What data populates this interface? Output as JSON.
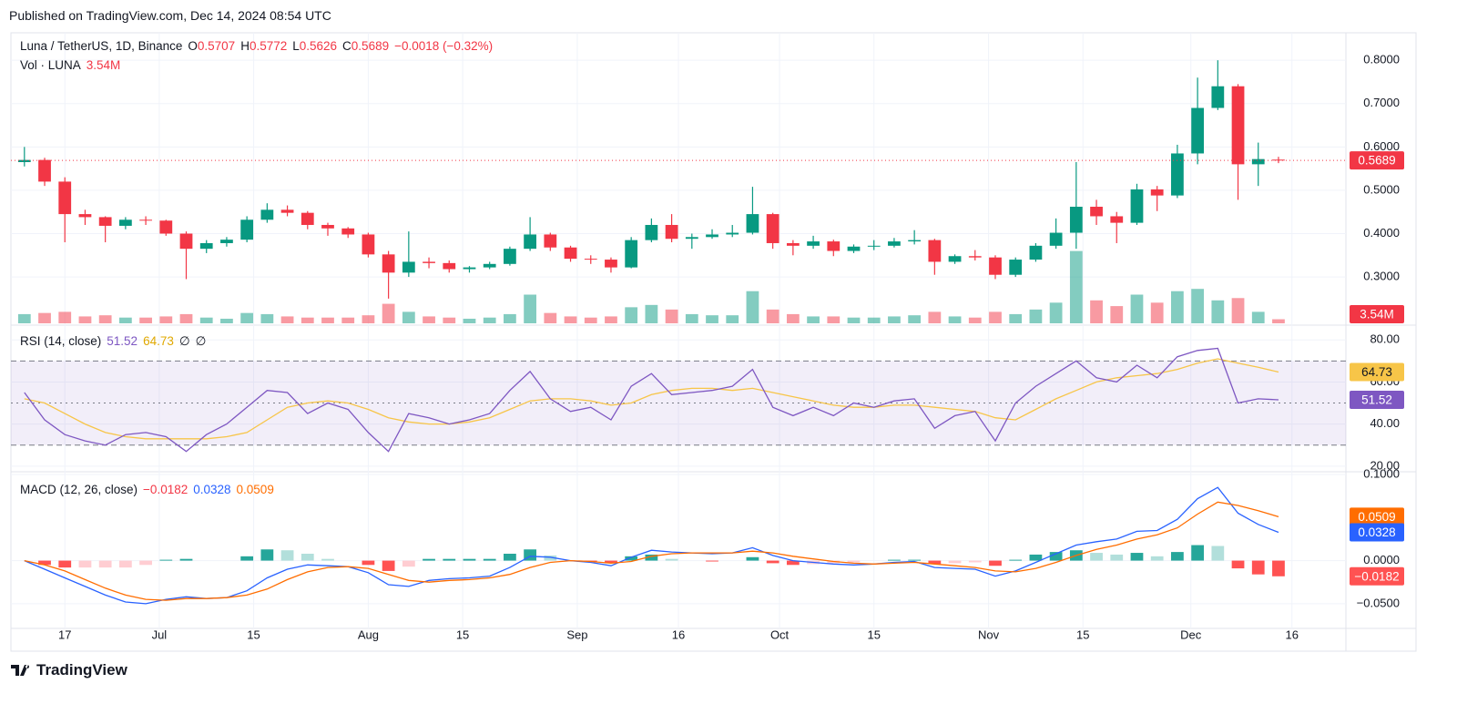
{
  "header": {
    "published": "Published on TradingView.com, Dec 14, 2024 08:54 UTC",
    "brand": "TradingView"
  },
  "chart_data": {
    "type": "candlestick",
    "title": "Luna / TetherUS, 1D, Binance",
    "ohlc_letters": [
      "O",
      "H",
      "L",
      "C"
    ],
    "change_label": "−0.0018 (−0.32%)",
    "up_color": "#089981",
    "down_color": "#f23645",
    "x": [
      "2024-06-11",
      "2024-06-14",
      "2024-06-17",
      "2024-06-20",
      "2024-06-23",
      "2024-06-26",
      "2024-06-29",
      "2024-07-02",
      "2024-07-05",
      "2024-07-08",
      "2024-07-11",
      "2024-07-14",
      "2024-07-17",
      "2024-07-20",
      "2024-07-23",
      "2024-07-26",
      "2024-07-29",
      "2024-08-01",
      "2024-08-04",
      "2024-08-07",
      "2024-08-10",
      "2024-08-13",
      "2024-08-16",
      "2024-08-19",
      "2024-08-22",
      "2024-08-25",
      "2024-08-28",
      "2024-08-31",
      "2024-09-03",
      "2024-09-06",
      "2024-09-09",
      "2024-09-12",
      "2024-09-15",
      "2024-09-18",
      "2024-09-21",
      "2024-09-24",
      "2024-09-27",
      "2024-09-30",
      "2024-10-03",
      "2024-10-06",
      "2024-10-09",
      "2024-10-12",
      "2024-10-15",
      "2024-10-18",
      "2024-10-21",
      "2024-10-24",
      "2024-10-27",
      "2024-10-30",
      "2024-11-02",
      "2024-11-05",
      "2024-11-08",
      "2024-11-11",
      "2024-11-14",
      "2024-11-17",
      "2024-11-20",
      "2024-11-23",
      "2024-11-26",
      "2024-11-29",
      "2024-12-02",
      "2024-12-05",
      "2024-12-08",
      "2024-12-11",
      "2024-12-14"
    ],
    "open": [
      0.565,
      0.57,
      0.52,
      0.445,
      0.438,
      0.418,
      0.432,
      0.43,
      0.4,
      0.365,
      0.378,
      0.386,
      0.432,
      0.455,
      0.448,
      0.42,
      0.412,
      0.398,
      0.352,
      0.31,
      0.335,
      0.332,
      0.318,
      0.322,
      0.33,
      0.365,
      0.398,
      0.368,
      0.342,
      0.34,
      0.322,
      0.385,
      0.42,
      0.388,
      0.392,
      0.398,
      0.402,
      0.445,
      0.378,
      0.372,
      0.382,
      0.36,
      0.37,
      0.372,
      0.382,
      0.385,
      0.335,
      0.348,
      0.345,
      0.305,
      0.34,
      0.372,
      0.402,
      0.462,
      0.44,
      0.425,
      0.502,
      0.488,
      0.585,
      0.69,
      0.74,
      0.56,
      0.5707
    ],
    "high": [
      0.6,
      0.575,
      0.53,
      0.455,
      0.44,
      0.438,
      0.44,
      0.432,
      0.405,
      0.385,
      0.392,
      0.44,
      0.47,
      0.465,
      0.452,
      0.425,
      0.415,
      0.402,
      0.36,
      0.405,
      0.345,
      0.338,
      0.325,
      0.335,
      0.37,
      0.438,
      0.402,
      0.372,
      0.35,
      0.345,
      0.392,
      0.435,
      0.445,
      0.4,
      0.41,
      0.42,
      0.508,
      0.448,
      0.385,
      0.395,
      0.386,
      0.375,
      0.385,
      0.39,
      0.408,
      0.388,
      0.352,
      0.362,
      0.35,
      0.345,
      0.378,
      0.435,
      0.565,
      0.478,
      0.45,
      0.515,
      0.51,
      0.605,
      0.76,
      0.8,
      0.745,
      0.61,
      0.5772
    ],
    "low": [
      0.555,
      0.51,
      0.38,
      0.42,
      0.38,
      0.41,
      0.42,
      0.395,
      0.295,
      0.355,
      0.37,
      0.38,
      0.425,
      0.44,
      0.41,
      0.395,
      0.39,
      0.345,
      0.25,
      0.3,
      0.32,
      0.31,
      0.31,
      0.318,
      0.326,
      0.36,
      0.36,
      0.335,
      0.33,
      0.31,
      0.32,
      0.38,
      0.38,
      0.365,
      0.388,
      0.392,
      0.398,
      0.365,
      0.35,
      0.365,
      0.348,
      0.355,
      0.362,
      0.368,
      0.375,
      0.305,
      0.33,
      0.338,
      0.295,
      0.3,
      0.335,
      0.365,
      0.365,
      0.42,
      0.378,
      0.42,
      0.452,
      0.482,
      0.56,
      0.685,
      0.478,
      0.51,
      0.5626
    ],
    "close": [
      0.57,
      0.52,
      0.445,
      0.438,
      0.418,
      0.432,
      0.43,
      0.4,
      0.365,
      0.378,
      0.386,
      0.432,
      0.455,
      0.448,
      0.42,
      0.412,
      0.398,
      0.352,
      0.31,
      0.335,
      0.332,
      0.318,
      0.322,
      0.33,
      0.365,
      0.398,
      0.368,
      0.342,
      0.34,
      0.322,
      0.385,
      0.42,
      0.388,
      0.392,
      0.398,
      0.402,
      0.445,
      0.378,
      0.372,
      0.382,
      0.36,
      0.37,
      0.372,
      0.382,
      0.385,
      0.335,
      0.348,
      0.345,
      0.305,
      0.34,
      0.372,
      0.402,
      0.462,
      0.44,
      0.425,
      0.502,
      0.488,
      0.585,
      0.69,
      0.74,
      0.56,
      0.572,
      0.5689
    ],
    "xlim": [
      "2024-06-09",
      "2024-12-24"
    ],
    "xticks": [
      {
        "value": "2024-06-17",
        "label": "17"
      },
      {
        "value": "2024-07-01",
        "label": "Jul"
      },
      {
        "value": "2024-07-15",
        "label": "15"
      },
      {
        "value": "2024-08-01",
        "label": "Aug"
      },
      {
        "value": "2024-08-15",
        "label": "15"
      },
      {
        "value": "2024-09-01",
        "label": "Sep"
      },
      {
        "value": "2024-09-16",
        "label": "16"
      },
      {
        "value": "2024-10-01",
        "label": "Oct"
      },
      {
        "value": "2024-10-15",
        "label": "15"
      },
      {
        "value": "2024-11-01",
        "label": "Nov"
      },
      {
        "value": "2024-11-15",
        "label": "15"
      },
      {
        "value": "2024-12-01",
        "label": "Dec"
      },
      {
        "value": "2024-12-16",
        "label": "16"
      }
    ],
    "ylim": [
      0.193,
      0.855
    ],
    "yticks": [
      {
        "value": 0.3,
        "label": "0.3000"
      },
      {
        "value": 0.4,
        "label": "0.4000"
      },
      {
        "value": 0.5,
        "label": "0.5000"
      },
      {
        "value": 0.6,
        "label": "0.6000"
      },
      {
        "value": 0.7,
        "label": "0.7000"
      },
      {
        "value": 0.8,
        "label": "0.8000"
      }
    ],
    "grid": true,
    "volume": {
      "name": "Vol · LUNA",
      "up_color": "rgba(8,153,129,0.5)",
      "down_color": "rgba(242,54,69,0.5)",
      "ylim": [
        0,
        250000000
      ],
      "values": [
        8000000,
        9000000,
        10000000,
        6000000,
        7000000,
        5000000,
        5000000,
        6000000,
        8000000,
        5000000,
        4000000,
        9000000,
        8000000,
        6000000,
        5000000,
        5000000,
        5000000,
        7000000,
        17000000,
        10000000,
        6000000,
        5000000,
        4000000,
        5000000,
        8000000,
        25000000,
        9000000,
        6000000,
        5000000,
        6000000,
        14000000,
        16000000,
        12000000,
        8000000,
        7000000,
        7000000,
        28000000,
        12000000,
        8000000,
        6000000,
        6000000,
        5000000,
        5000000,
        6000000,
        7000000,
        10000000,
        6000000,
        5000000,
        10000000,
        8000000,
        12000000,
        18000000,
        63000000,
        20000000,
        15000000,
        25000000,
        18000000,
        28000000,
        30000000,
        20000000,
        22000000,
        10000000,
        3540000
      ],
      "value_labels": [
        null,
        null,
        null,
        null,
        null,
        null,
        null,
        null,
        null,
        null,
        null,
        null,
        null,
        null,
        null,
        null,
        null,
        null,
        null,
        null,
        null,
        null,
        null,
        null,
        null,
        null,
        null,
        null,
        null,
        null,
        null,
        null,
        null,
        null,
        null,
        null,
        null,
        null,
        null,
        null,
        null,
        null,
        null,
        null,
        null,
        null,
        null,
        null,
        null,
        null,
        null,
        null,
        null,
        null,
        null,
        null,
        null,
        null,
        null,
        null,
        null,
        null,
        "3.54M"
      ]
    },
    "rsi": {
      "title": "RSI (14, close)",
      "extra_legend": [
        "∅",
        "∅"
      ],
      "band_fill": "rgba(126,87,194,0.1)",
      "upper": 70,
      "middle": 50,
      "lower": 30,
      "ylim": [
        18.2,
        86.6
      ],
      "yticks": [
        {
          "value": 20,
          "label": "20.00"
        },
        {
          "value": 40,
          "label": "40.00"
        },
        {
          "value": 60,
          "label": "60.00"
        },
        {
          "value": 80,
          "label": "80.00"
        }
      ],
      "series": [
        {
          "color": "#7e57c2",
          "values": [
            55,
            42,
            35,
            32,
            30,
            35,
            36,
            34,
            27,
            35,
            40,
            48,
            56,
            55,
            45,
            50,
            47,
            36,
            27,
            45,
            43,
            40,
            42,
            45,
            56,
            65,
            52,
            46,
            48,
            42,
            58,
            64,
            54,
            55,
            56,
            58,
            66,
            48,
            44,
            48,
            44,
            50,
            48,
            51,
            52,
            38,
            44,
            46,
            32,
            50,
            58,
            64,
            70,
            62,
            60,
            68,
            62,
            72,
            75,
            76,
            50,
            52,
            51.52
          ]
        },
        {
          "color": "#f7c548",
          "values": [
            52,
            50,
            45,
            40,
            36,
            34,
            33,
            33,
            33,
            33,
            34,
            36,
            42,
            48,
            50,
            51,
            50,
            47,
            43,
            41,
            40,
            40,
            41,
            43,
            47,
            51,
            52,
            52,
            51,
            49,
            50,
            54,
            56,
            57,
            57,
            56,
            57,
            55,
            53,
            51,
            49,
            48,
            48,
            49,
            49,
            48,
            47,
            46,
            43,
            42,
            47,
            52,
            56,
            60,
            62,
            63,
            64,
            66,
            69,
            71,
            69,
            67,
            64.73
          ]
        }
      ]
    },
    "macd": {
      "title": "MACD (12, 26, close)",
      "ylim": [
        -0.0787,
        0.1021
      ],
      "yticks": [
        {
          "value": -0.05,
          "label": "−0.0500"
        },
        {
          "value": 0,
          "label": "0.0000"
        },
        {
          "value": 0.1,
          "label": "0.1000"
        }
      ],
      "histogram": {
        "colors": {
          "grow_above": "#26a69a",
          "fall_above": "#b2dfdb",
          "grow_below": "#ffcdd2",
          "fall_below": "#ff5252"
        },
        "values": [
          0,
          -0.005,
          -0.008,
          -0.008,
          -0.008,
          -0.008,
          -0.005,
          0.001,
          0.002,
          0,
          0,
          0.005,
          0.013,
          0.012,
          0.008,
          0.002,
          0,
          -0.005,
          -0.012,
          -0.007,
          0.002,
          0.002,
          0.002,
          0.002,
          0.008,
          0.013,
          0.006,
          0,
          -0.001,
          -0.003,
          0.005,
          0.007,
          0.002,
          0,
          -0.001,
          0,
          0.004,
          -0.003,
          -0.005,
          -0.004,
          -0.003,
          -0.002,
          0,
          0.001,
          0.001,
          -0.004,
          -0.003,
          -0.002,
          -0.006,
          0.001,
          0.007,
          0.01,
          0.012,
          0.009,
          0.007,
          0.009,
          0.005,
          0.01,
          0.018,
          0.017,
          -0.009,
          -0.016,
          -0.0182
        ],
        "value_labels": [
          null,
          null,
          null,
          null,
          null,
          null,
          null,
          null,
          null,
          null,
          null,
          null,
          null,
          null,
          null,
          null,
          null,
          null,
          null,
          null,
          null,
          null,
          null,
          null,
          null,
          null,
          null,
          null,
          null,
          null,
          null,
          null,
          null,
          null,
          null,
          null,
          null,
          null,
          null,
          null,
          null,
          null,
          null,
          null,
          null,
          null,
          null,
          null,
          null,
          null,
          null,
          null,
          null,
          null,
          null,
          null,
          null,
          null,
          null,
          null,
          null,
          null,
          "−0.0182"
        ]
      },
      "series": [
        {
          "color": "#2962ff",
          "values": [
            0,
            -0.01,
            -0.02,
            -0.03,
            -0.04,
            -0.048,
            -0.05,
            -0.045,
            -0.042,
            -0.044,
            -0.043,
            -0.035,
            -0.02,
            -0.01,
            -0.005,
            -0.006,
            -0.007,
            -0.014,
            -0.028,
            -0.03,
            -0.023,
            -0.021,
            -0.02,
            -0.018,
            -0.008,
            0.005,
            0.004,
            0,
            -0.002,
            -0.006,
            0.004,
            0.012,
            0.01,
            0.009,
            0.008,
            0.009,
            0.015,
            0.006,
            0,
            -0.002,
            -0.004,
            -0.005,
            -0.004,
            -0.002,
            -0.001,
            -0.008,
            -0.009,
            -0.01,
            -0.018,
            -0.012,
            -0.002,
            0.008,
            0.018,
            0.022,
            0.025,
            0.034,
            0.035,
            0.048,
            0.072,
            0.085,
            0.055,
            0.042,
            0.0328
          ]
        },
        {
          "color": "#ff6d00",
          "values": [
            0,
            -0.005,
            -0.012,
            -0.022,
            -0.032,
            -0.04,
            -0.045,
            -0.046,
            -0.044,
            -0.044,
            -0.043,
            -0.04,
            -0.033,
            -0.022,
            -0.013,
            -0.008,
            -0.007,
            -0.009,
            -0.016,
            -0.023,
            -0.025,
            -0.023,
            -0.022,
            -0.02,
            -0.016,
            -0.008,
            -0.002,
            0,
            -0.001,
            -0.003,
            -0.001,
            0.005,
            0.008,
            0.009,
            0.009,
            0.009,
            0.011,
            0.009,
            0.005,
            0.002,
            -0.001,
            -0.003,
            -0.004,
            -0.003,
            -0.002,
            -0.004,
            -0.006,
            -0.008,
            -0.012,
            -0.013,
            -0.009,
            -0.002,
            0.006,
            0.013,
            0.018,
            0.025,
            0.03,
            0.038,
            0.054,
            0.068,
            0.064,
            0.058,
            0.0509
          ]
        }
      ]
    }
  }
}
